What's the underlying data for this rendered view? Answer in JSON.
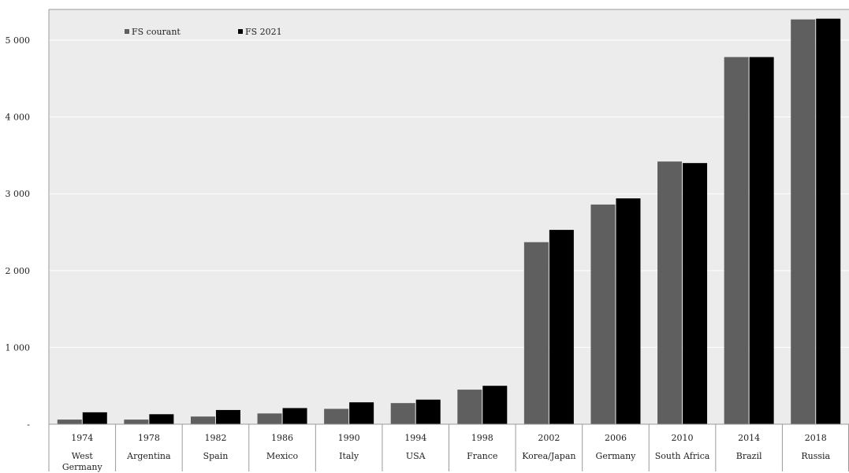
{
  "chart_data": {
    "type": "bar",
    "title": "",
    "xlabel": "",
    "ylabel": "",
    "ylim": [
      0,
      5400
    ],
    "yticks": [
      0,
      1000,
      2000,
      3000,
      4000,
      5000
    ],
    "ytick_labels": [
      "-",
      "1 000",
      "2 000",
      "3 000",
      "4 000",
      "5 000"
    ],
    "grid": true,
    "legend_position": "top-left",
    "categories": [
      {
        "year": "1974",
        "name": "West Germany"
      },
      {
        "year": "1978",
        "name": "Argentina"
      },
      {
        "year": "1982",
        "name": "Spain"
      },
      {
        "year": "1986",
        "name": "Mexico"
      },
      {
        "year": "1990",
        "name": "Italy"
      },
      {
        "year": "1994",
        "name": "USA"
      },
      {
        "year": "1998",
        "name": "France"
      },
      {
        "year": "2002",
        "name": "Korea/Japan"
      },
      {
        "year": "2006",
        "name": "Germany"
      },
      {
        "year": "2010",
        "name": "South Africa"
      },
      {
        "year": "2014",
        "name": "Brazil"
      },
      {
        "year": "2018",
        "name": "Russia"
      }
    ],
    "series": [
      {
        "name": "FS courant",
        "color": "#5f5f5f",
        "values": [
          60,
          60,
          100,
          140,
          200,
          275,
          450,
          2370,
          2860,
          3420,
          4780,
          5270
        ]
      },
      {
        "name": "FS 2021",
        "color": "#000000",
        "values": [
          155,
          130,
          185,
          210,
          285,
          320,
          500,
          2530,
          2940,
          3400,
          4780,
          5280
        ]
      }
    ],
    "plot_background": "#ececec",
    "gridline_color": "#ffffff"
  }
}
